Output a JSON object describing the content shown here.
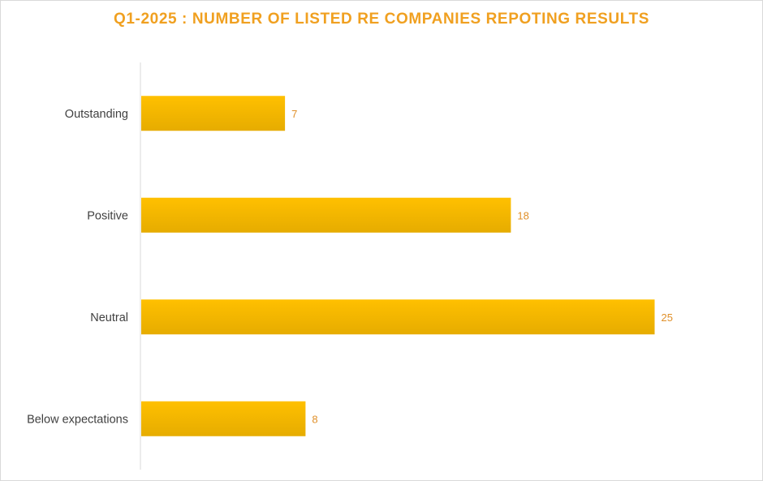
{
  "chart_data": {
    "type": "bar",
    "orientation": "horizontal",
    "title": "Q1-2025 : NUMBER OF LISTED RE COMPANIES REPOTING RESULTS",
    "categories": [
      "Outstanding",
      "Positive",
      "Neutral",
      "Below expectations"
    ],
    "values": [
      7,
      18,
      25,
      8
    ],
    "xlim": [
      0,
      30
    ],
    "grid": false,
    "legend": "none",
    "colors": {
      "bar_top": "#ffc000",
      "bar_bottom": "#e6ac00",
      "title": "#f0a020",
      "data_label": "#e0902a",
      "axis_line": "#d9d9d9",
      "category_text": "#404040"
    }
  }
}
